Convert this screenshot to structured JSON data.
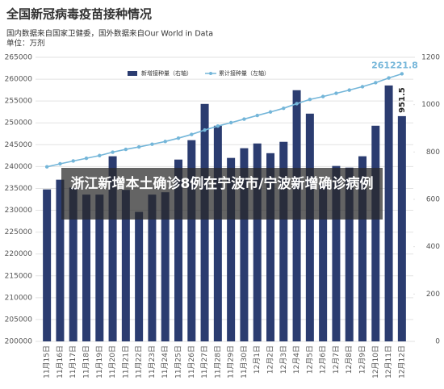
{
  "chart_data": {
    "type": "bar_line",
    "title": "全国新冠病毒疫苗接种情况",
    "subtitle": "国内数据来自国家卫健委，国外数据来自Our World in Data",
    "unit": "单位：万剂",
    "overlay_title": "浙江新增本土确诊8例在宁波市/宁波新增确诊病例",
    "categories": [
      "11月15日",
      "11月16日",
      "11月17日",
      "11月18日",
      "11月19日",
      "11月20日",
      "11月21日",
      "11月22日",
      "11月23日",
      "11月24日",
      "11月25日",
      "11月26日",
      "11月27日",
      "11月28日",
      "11月29日",
      "11月30日",
      "12月1日",
      "12月2日",
      "12月3日",
      "12月4日",
      "12月5日",
      "12月6日",
      "12月7日",
      "12月8日",
      "12月9日",
      "12月10日",
      "12月11日",
      "12月12日"
    ],
    "series": [
      {
        "name": "新增接种量（右轴）",
        "type": "bar",
        "axis": "y2",
        "color": "#2b3c70",
        "values": [
          642,
          683,
          650,
          620,
          620,
          782,
          640,
          547,
          620,
          630,
          768,
          850,
          1003,
          911,
          775,
          816,
          836,
          795,
          843,
          1061,
          962,
          666,
          741,
          734,
          782,
          911,
          1081,
          951.5
        ]
      },
      {
        "name": "累计接种量（左轴）",
        "type": "line",
        "axis": "y",
        "color": "#74b6d9",
        "values": [
          239943.3,
          240626.3,
          241276.3,
          241896.3,
          242516.3,
          243298.3,
          243938.3,
          244485.3,
          245105.3,
          245735.3,
          246503.3,
          247353.3,
          248356.3,
          249267.3,
          250042.3,
          250858.3,
          251694.3,
          252489.3,
          253332.3,
          254393.3,
          255355.3,
          256021.3,
          256762.3,
          257496.3,
          258278.3,
          259189.3,
          260270.3,
          261221.8
        ]
      }
    ],
    "ylim": [
      200000,
      265000
    ],
    "yticks": [
      200000,
      205000,
      210000,
      215000,
      220000,
      225000,
      230000,
      235000,
      240000,
      245000,
      250000,
      255000,
      260000,
      265000
    ],
    "y2lim": [
      0,
      1200
    ],
    "y2ticks": [
      0,
      200,
      400,
      600,
      800,
      1000,
      1200
    ],
    "grid": true
  }
}
